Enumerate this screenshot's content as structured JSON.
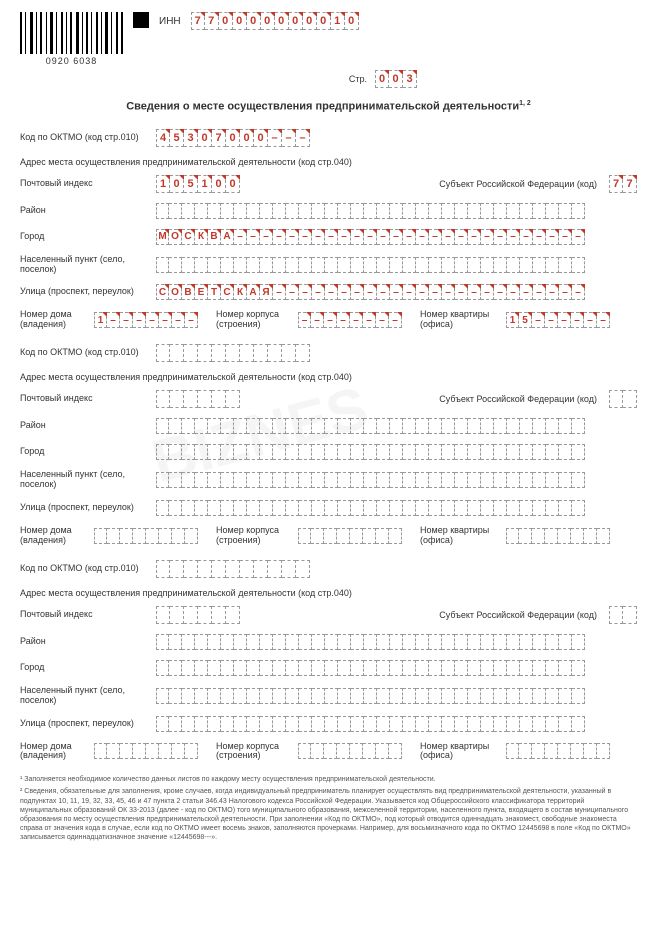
{
  "header": {
    "barcode_number": "0920 6038",
    "inn_label": "ИНН",
    "inn": [
      "7",
      "7",
      "0",
      "0",
      "0",
      "0",
      "0",
      "0",
      "0",
      "0",
      "1",
      "0"
    ],
    "str_label": "Стр.",
    "str": [
      "0",
      "0",
      "3"
    ]
  },
  "title": "Сведения о месте осуществления предпринимательской деятельности",
  "title_sup": "1, 2",
  "labels": {
    "oktmo": "Код по ОКТМО (код стр.010)",
    "addr_header": "Адрес места осуществления предпринимательской деятельности (код стр.040)",
    "postal": "Почтовый индекс",
    "subject": "Субъект Российской Федерации (код)",
    "raion": "Район",
    "city": "Город",
    "settlement": "Населенный пункт (село, поселок)",
    "street": "Улица (проспект, переулок)",
    "house": "Номер дома (владения)",
    "korpus": "Номер корпуса (строения)",
    "flat": "Номер квартиры (офиса)"
  },
  "block1": {
    "oktmo": [
      "4",
      "5",
      "3",
      "0",
      "7",
      "0",
      "0",
      "0",
      "–",
      "–",
      "–"
    ],
    "postal": [
      "1",
      "0",
      "5",
      "1",
      "0",
      "0"
    ],
    "subject": [
      "7",
      "7"
    ],
    "raion": [],
    "city": [
      "М",
      "О",
      "С",
      "К",
      "В",
      "А",
      "–",
      "–",
      "–",
      "–",
      "–",
      "–",
      "–",
      "–",
      "–",
      "–",
      "–",
      "–",
      "–",
      "–",
      "–",
      "–",
      "–",
      "–",
      "–",
      "–",
      "–",
      "–",
      "–",
      "–",
      "–",
      "–",
      "–"
    ],
    "settlement": [],
    "street": [
      "С",
      "О",
      "В",
      "Е",
      "Т",
      "С",
      "К",
      "А",
      "Я",
      "–",
      "–",
      "–",
      "–",
      "–",
      "–",
      "–",
      "–",
      "–",
      "–",
      "–",
      "–",
      "–",
      "–",
      "–",
      "–",
      "–",
      "–",
      "–",
      "–",
      "–",
      "–",
      "–",
      "–"
    ],
    "house": [
      "1",
      "–",
      "–",
      "–",
      "–",
      "–",
      "–",
      "–"
    ],
    "korpus": [
      "–",
      "–",
      "–",
      "–",
      "–",
      "–",
      "–",
      "–"
    ],
    "flat": [
      "1",
      "5",
      "–",
      "–",
      "–",
      "–",
      "–",
      "–"
    ]
  },
  "footnotes": {
    "f1": "¹ Заполняется необходимое количество данных листов по каждому месту осуществления предпринимательской деятельности.",
    "f2": "² Сведения, обязательные для заполнения, кроме случаев, когда индивидуальный предприниматель планирует осуществлять вид предпринимательской деятельности, указанный в подпунктах 10, 11, 19, 32, 33, 45, 46 и 47 пункта 2 статьи 346.43 Налогового кодекса Российской Федерации. Указывается код Общероссийского классификатора территорий муниципальных образований ОК 33-2013 (далее - код по ОКТМО) того муниципального образования, межселенной территории, населенного пункта, входящего в состав муниципального образования по месту осуществления предпринимательской деятельности. При заполнении «Код по ОКТМО», под который отводится одиннадцать знакомест, свободные знакоместа справа от значения кода в случае, если код по ОКТМО имеет восемь знаков, заполняются прочерками. Например, для восьмизначного кода по ОКТМО 12445698 в поле «Код по ОКТМО» записывается одиннадцатизначное значение «12445698---»."
  },
  "style": {
    "value_color": "#c0392b",
    "cell_border": "#999999",
    "text_color": "#333333"
  }
}
